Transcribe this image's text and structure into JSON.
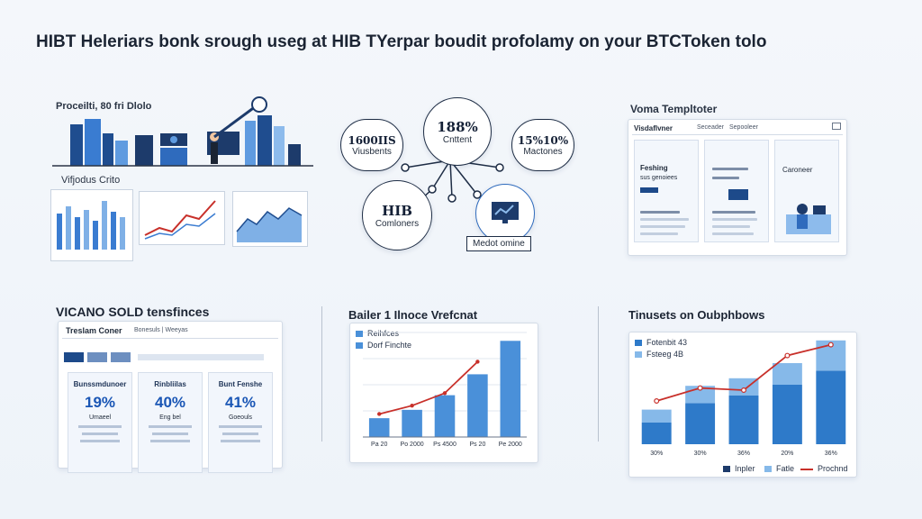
{
  "headline": "HIBT Heleriars bonk srough useg at HIB TYerpar boudit profolamy on your BTCToken tolo",
  "top_left": {
    "title": "Proceilti, 80 fri Dlolo",
    "subtitle": "Vifjodus Crito"
  },
  "center_network": {
    "hub_value": "188%",
    "hub_label": "Cnttent",
    "left_value": "1600IIS",
    "left_label": "Viusbents",
    "right_value": "15%10%",
    "right_label": "Mactones",
    "bottom_value": "HIB",
    "bottom_label": "Comloners",
    "tag_label": "Medot omine"
  },
  "top_right": {
    "title": "Voma Templtoter",
    "tab_a": "Visdaflvner",
    "tab_b": "Seceader",
    "tab_c": "Sepooleer",
    "card1_title": "Feshing",
    "card1_sub": "sus genoiees",
    "card3_title": "Caroneer"
  },
  "bottom_left": {
    "title": "VICANO SOLD tensfinces",
    "toolbar_title": "Treslam Coner",
    "toolbar_sub": "Bonesuls | Weeyas",
    "cards": [
      {
        "head": "Bunssmdunoer",
        "pct": "19%",
        "sub": "Umaeel"
      },
      {
        "head": "Rinbliilas",
        "pct": "40%",
        "sub": "Eng bel"
      },
      {
        "head": "Bunt Fenshe",
        "pct": "41%",
        "sub": "Goeouls"
      }
    ]
  },
  "bottom_center": {
    "title": "Bailer 1 Ilnoce Vrefcnat",
    "legend": [
      "Reihfces",
      "Dorf Finchte"
    ],
    "colors": {
      "bar": "#4a90d9",
      "line": "#c8302a"
    },
    "chart_data": {
      "type": "bar",
      "categories": [
        "Pa 20",
        "Po 2000",
        "Ps 4500",
        "Ps 20",
        "Pe 2000"
      ],
      "values": [
        18,
        26,
        40,
        60,
        92
      ],
      "line_values": [
        22,
        30,
        42,
        72,
        null
      ],
      "ylim": [
        0,
        100
      ]
    }
  },
  "bottom_right": {
    "title": "Tinusets on Oubphbows",
    "legend": [
      "Fotenbit 43",
      "Fsteeg 4B"
    ],
    "bottom_legend": [
      "Inpler",
      "Fatle",
      "Prochnd"
    ],
    "colors": {
      "dark": "#2e7ac9",
      "light": "#86b9e9",
      "line": "#c8302a"
    },
    "chart_data": {
      "type": "bar",
      "categories": [
        "30%",
        "30%",
        "36%",
        "20%",
        "36%"
      ],
      "series": [
        {
          "values": [
            20,
            38,
            45,
            55,
            68
          ]
        },
        {
          "values": [
            12,
            16,
            16,
            20,
            28
          ]
        }
      ],
      "line_values": [
        40,
        52,
        50,
        82,
        92
      ],
      "ylim": [
        0,
        100
      ]
    }
  }
}
